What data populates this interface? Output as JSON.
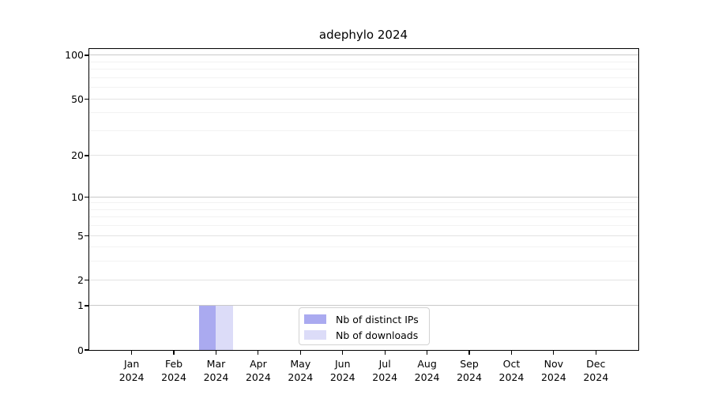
{
  "chart_data": {
    "type": "bar",
    "title": "adephylo 2024",
    "x_tick_months": [
      "Jan",
      "Feb",
      "Mar",
      "Apr",
      "May",
      "Jun",
      "Jul",
      "Aug",
      "Sep",
      "Oct",
      "Nov",
      "Dec"
    ],
    "x_tick_year": "2024",
    "categories": [
      "Jan 2024",
      "Feb 2024",
      "Mar 2024",
      "Apr 2024",
      "May 2024",
      "Jun 2024",
      "Jul 2024",
      "Aug 2024",
      "Sep 2024",
      "Oct 2024",
      "Nov 2024",
      "Dec 2024"
    ],
    "series": [
      {
        "name": "Nb of distinct IPs",
        "color": "#aaaaf0",
        "values": [
          0,
          0,
          1,
          0,
          0,
          0,
          0,
          0,
          0,
          0,
          0,
          0
        ]
      },
      {
        "name": "Nb of downloads",
        "color": "#dcdcf8",
        "values": [
          0,
          0,
          1,
          0,
          0,
          0,
          0,
          0,
          0,
          0,
          0,
          0
        ]
      }
    ],
    "y_scale": "log1p",
    "ylim": [
      0,
      110.5
    ],
    "y_ticks_labeled": [
      0,
      1,
      2,
      5,
      10,
      20,
      50,
      100
    ],
    "y_gridlines_major": [
      1,
      10,
      100
    ],
    "y_gridlines_mid": [
      2,
      5,
      20,
      50
    ],
    "y_gridlines_minor": [
      3,
      4,
      6,
      7,
      8,
      9,
      30,
      40,
      60,
      70,
      80,
      90
    ],
    "legend_position": "lower center (inside plot)",
    "grid": "horizontal only",
    "colors": {
      "grid_major": "#c9c9c9",
      "grid_mid": "#e3e3e3",
      "grid_minor": "#f2f2f2",
      "axis": "#000000",
      "background": "#ffffff"
    }
  }
}
